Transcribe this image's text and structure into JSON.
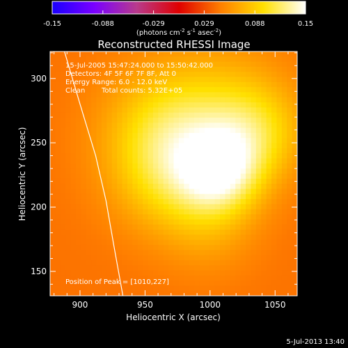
{
  "chart_data": {
    "type": "heatmap",
    "title": "Reconstructed RHESSI Image",
    "xlabel": "Heliocentric X (arcsec)",
    "ylabel": "Heliocentric Y (arcsec)",
    "xlim": [
      877,
      1067
    ],
    "ylim": [
      131,
      321
    ],
    "x_ticks": [
      900,
      950,
      1000,
      1050
    ],
    "y_ticks": [
      150,
      200,
      250,
      300
    ],
    "annotations": {
      "time_range": "15-Jul-2005 15:47:24.000 to 15:50:42.000",
      "detectors": "Detectors: 4F 5F 6F 7F 8F, Att 0",
      "energy": "Energy Range: 6.0 - 12.0 keV",
      "clean_label": "Clean",
      "total_counts": "Total counts: 5.32E+05",
      "peak": "Position of Peak = [1010,227]"
    },
    "peak": [
      1010,
      227
    ],
    "colorbar": {
      "range": [
        -0.15,
        0.15
      ],
      "tick_labels": [
        "-0.15",
        "-0.088",
        "-0.029",
        "0.029",
        "0.088",
        "0.15"
      ],
      "unit_label": "(photons cm",
      "unit_sup1": "-2",
      "unit_mid1": " s",
      "unit_sup2": "-1",
      "unit_mid2": " asec",
      "unit_sup3": "-2",
      "unit_end": ")"
    },
    "colormap_hex": [
      "#1a00ff",
      "#7a00ff",
      "#b83a8c",
      "#e00000",
      "#ff8000",
      "#ffe000",
      "#ffffff"
    ],
    "background_hex": "#6a3196",
    "limb_curve": [
      [
        888,
        321
      ],
      [
        900,
        280
      ],
      [
        912,
        240
      ],
      [
        920,
        205
      ],
      [
        926,
        170
      ],
      [
        933,
        131
      ]
    ],
    "sources": [
      {
        "x": 1008,
        "y": 227,
        "sigma": 22,
        "amp": 0.075
      },
      {
        "x": 1035,
        "y": 258,
        "sigma": 26,
        "amp": 0.045
      },
      {
        "x": 968,
        "y": 258,
        "sigma": 34,
        "amp": 0.055
      },
      {
        "x": 968,
        "y": 220,
        "sigma": 30,
        "amp": 0.035
      },
      {
        "x": 1010,
        "y": 280,
        "sigma": 36,
        "amp": 0.025
      },
      {
        "x": 1000,
        "y": 185,
        "sigma": 26,
        "amp": 0.02
      }
    ],
    "baseline": 0.045
  },
  "timestamp": "5-Jul-2013 13:40"
}
